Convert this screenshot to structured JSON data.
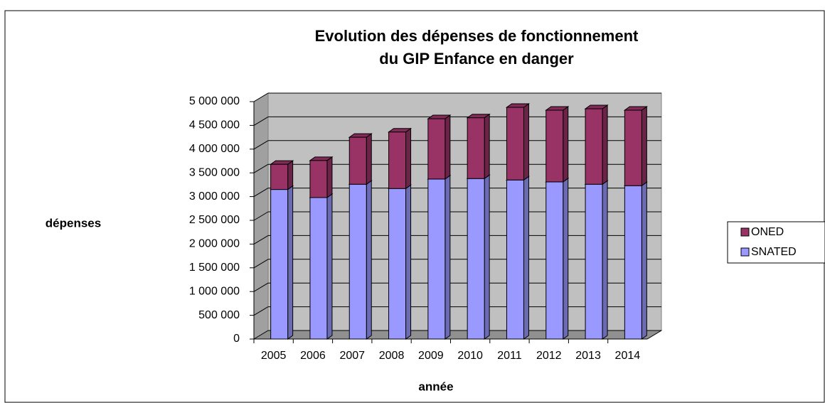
{
  "chart_data": {
    "type": "stacked_bar_3d",
    "title": [
      "Evolution des dépenses de fonctionnement",
      "du GIP Enfance en danger"
    ],
    "xlabel": "année",
    "ylabel": "dépenses",
    "categories": [
      "2005",
      "2006",
      "2007",
      "2008",
      "2009",
      "2010",
      "2011",
      "2012",
      "2013",
      "2014"
    ],
    "series": [
      {
        "name": "SNATED",
        "color": "#9999ff",
        "values": [
          3150000,
          2980000,
          3260000,
          3170000,
          3370000,
          3380000,
          3350000,
          3310000,
          3260000,
          3230000
        ]
      },
      {
        "name": "ONED",
        "color": "#993366",
        "values": [
          530000,
          780000,
          990000,
          1190000,
          1270000,
          1280000,
          1530000,
          1510000,
          1590000,
          1590000
        ]
      }
    ],
    "ylim": [
      0,
      5000000
    ],
    "yticks": [
      0,
      {
        "value": 500000,
        "label": "500 000"
      },
      {
        "value": 1000000,
        "label": "1 000 000"
      },
      {
        "value": 1500000,
        "label": "1 500 000"
      },
      {
        "value": 2000000,
        "label": "2 000 000"
      },
      {
        "value": 2500000,
        "label": "2 500 000"
      },
      {
        "value": 3000000,
        "label": "3 000 000"
      },
      {
        "value": 3500000,
        "label": "3 500 000"
      },
      {
        "value": 4000000,
        "label": "4 000 000"
      },
      {
        "value": 4500000,
        "label": "4 500 000"
      },
      {
        "value": 5000000,
        "label": "5 000 000"
      }
    ],
    "grid": true,
    "legend": "right"
  }
}
